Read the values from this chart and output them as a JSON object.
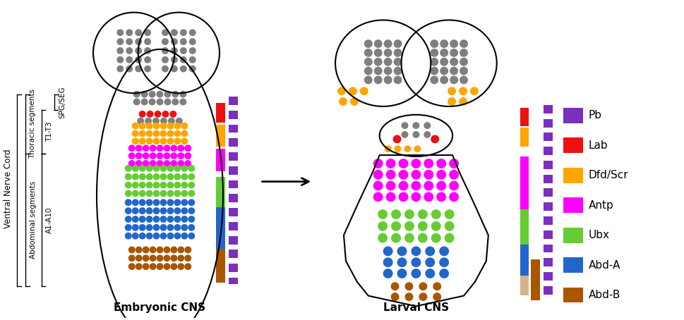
{
  "colors": {
    "gray": "#7F7F7F",
    "red": "#EE1111",
    "orange": "#FFA500",
    "magenta": "#FF00FF",
    "green": "#66CC33",
    "blue": "#2266CC",
    "brown": "#AA5500",
    "purple": "#7B2FBE",
    "beige": "#D2B48C"
  },
  "legend_items": [
    {
      "label": "Pb",
      "color": "#7B2FBE"
    },
    {
      "label": "Lab",
      "color": "#EE1111"
    },
    {
      "label": "Dfd/Scr",
      "color": "#FFA500"
    },
    {
      "label": "Antp",
      "color": "#FF00FF"
    },
    {
      "label": "Ubx",
      "color": "#66CC33"
    },
    {
      "label": "Abd-A",
      "color": "#2266CC"
    },
    {
      "label": "Abd-B",
      "color": "#AA5500"
    }
  ],
  "title_embryonic": "Embryonic CNS",
  "title_larval": "Larval CNS",
  "label_ventral": "Ventral Nerve Cord",
  "label_thoracic": "Thoracic segments",
  "label_t1t3": "T1-T3",
  "label_spg": "SPG/SEG",
  "label_abdominal": "Abdominal segments",
  "label_a1a10": "A1-A10"
}
